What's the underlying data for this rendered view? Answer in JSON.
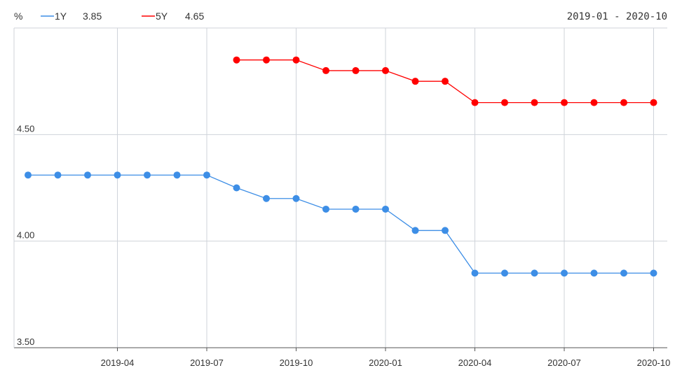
{
  "chart_data": {
    "type": "line",
    "ylabel": "%",
    "date_range": "2019-01 - 2020-10",
    "ylim": [
      3.5,
      5.0
    ],
    "y_ticks": [
      "3.50",
      "4.00",
      "4.50"
    ],
    "y_tick_values": [
      3.5,
      4.0,
      4.5
    ],
    "x": [
      "2019-01",
      "2019-02",
      "2019-03",
      "2019-04",
      "2019-05",
      "2019-06",
      "2019-07",
      "2019-08",
      "2019-09",
      "2019-10",
      "2019-11",
      "2019-12",
      "2020-01",
      "2020-02",
      "2020-03",
      "2020-04",
      "2020-05",
      "2020-06",
      "2020-07",
      "2020-08",
      "2020-09",
      "2020-10"
    ],
    "x_ticks": [
      "2019-04",
      "2019-07",
      "2019-10",
      "2020-01",
      "2020-04",
      "2020-07",
      "2020-10"
    ],
    "grid": true,
    "legend_position": "top-left",
    "series": [
      {
        "name": "1Y",
        "latest": "3.85",
        "color": "#3d8ee6",
        "values": [
          4.31,
          4.31,
          4.31,
          4.31,
          4.31,
          4.31,
          4.31,
          4.25,
          4.2,
          4.2,
          4.15,
          4.15,
          4.15,
          4.05,
          4.05,
          3.85,
          3.85,
          3.85,
          3.85,
          3.85,
          3.85,
          3.85
        ]
      },
      {
        "name": "5Y",
        "latest": "4.65",
        "color": "#ff0000",
        "values": [
          null,
          null,
          null,
          null,
          null,
          null,
          null,
          4.85,
          4.85,
          4.85,
          4.8,
          4.8,
          4.8,
          4.75,
          4.75,
          4.65,
          4.65,
          4.65,
          4.65,
          4.65,
          4.65,
          4.65
        ]
      }
    ]
  }
}
